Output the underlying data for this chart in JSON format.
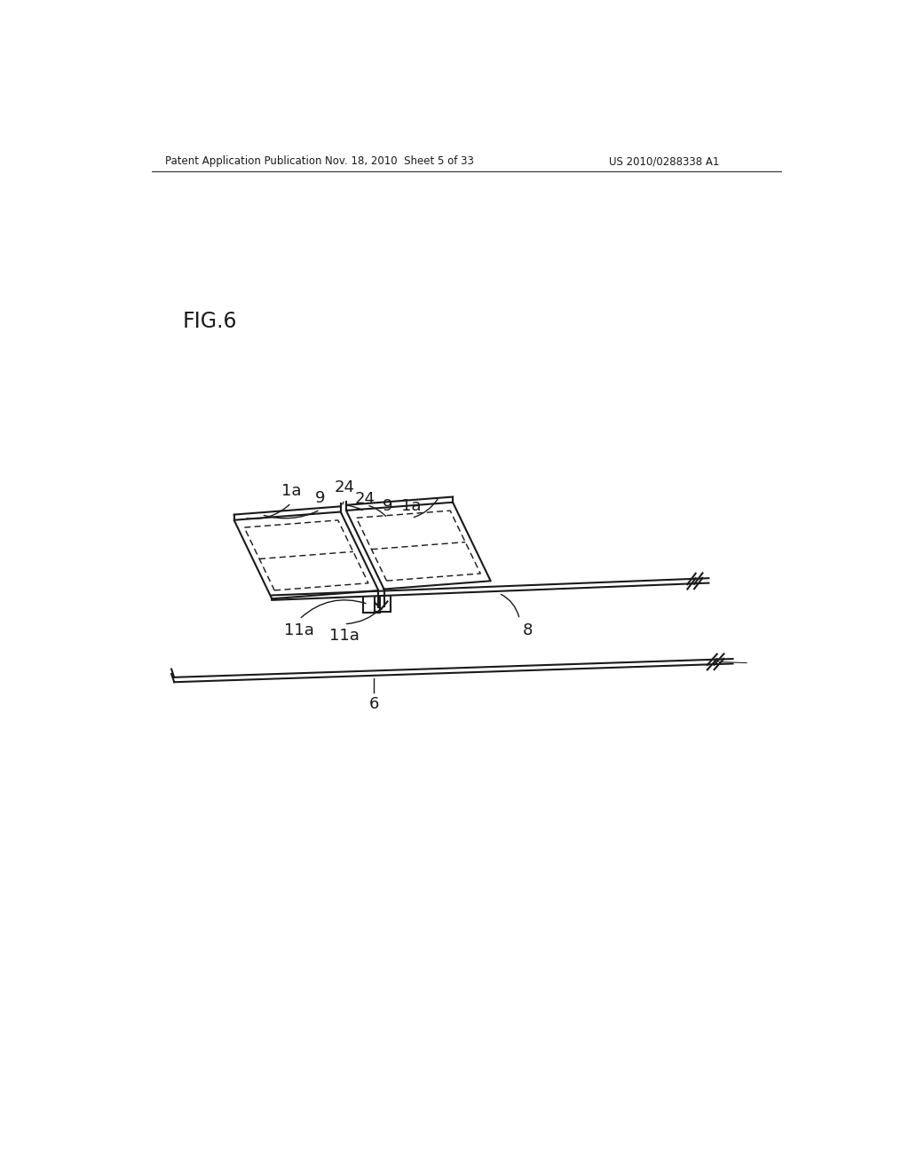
{
  "bg_color": "#ffffff",
  "line_color": "#1a1a1a",
  "header_left": "Patent Application Publication",
  "header_mid": "Nov. 18, 2010  Sheet 5 of 33",
  "header_right": "US 2010/0288338 A1",
  "fig_label": "FIG.6",
  "labels": {
    "1a_left": "1a",
    "9_left": "9",
    "24_left": "24",
    "24_right": "24",
    "9_right": "9",
    "1a_right": "1a",
    "8": "8",
    "11a_left": "11a",
    "11a_right": "11a",
    "6": "6"
  }
}
